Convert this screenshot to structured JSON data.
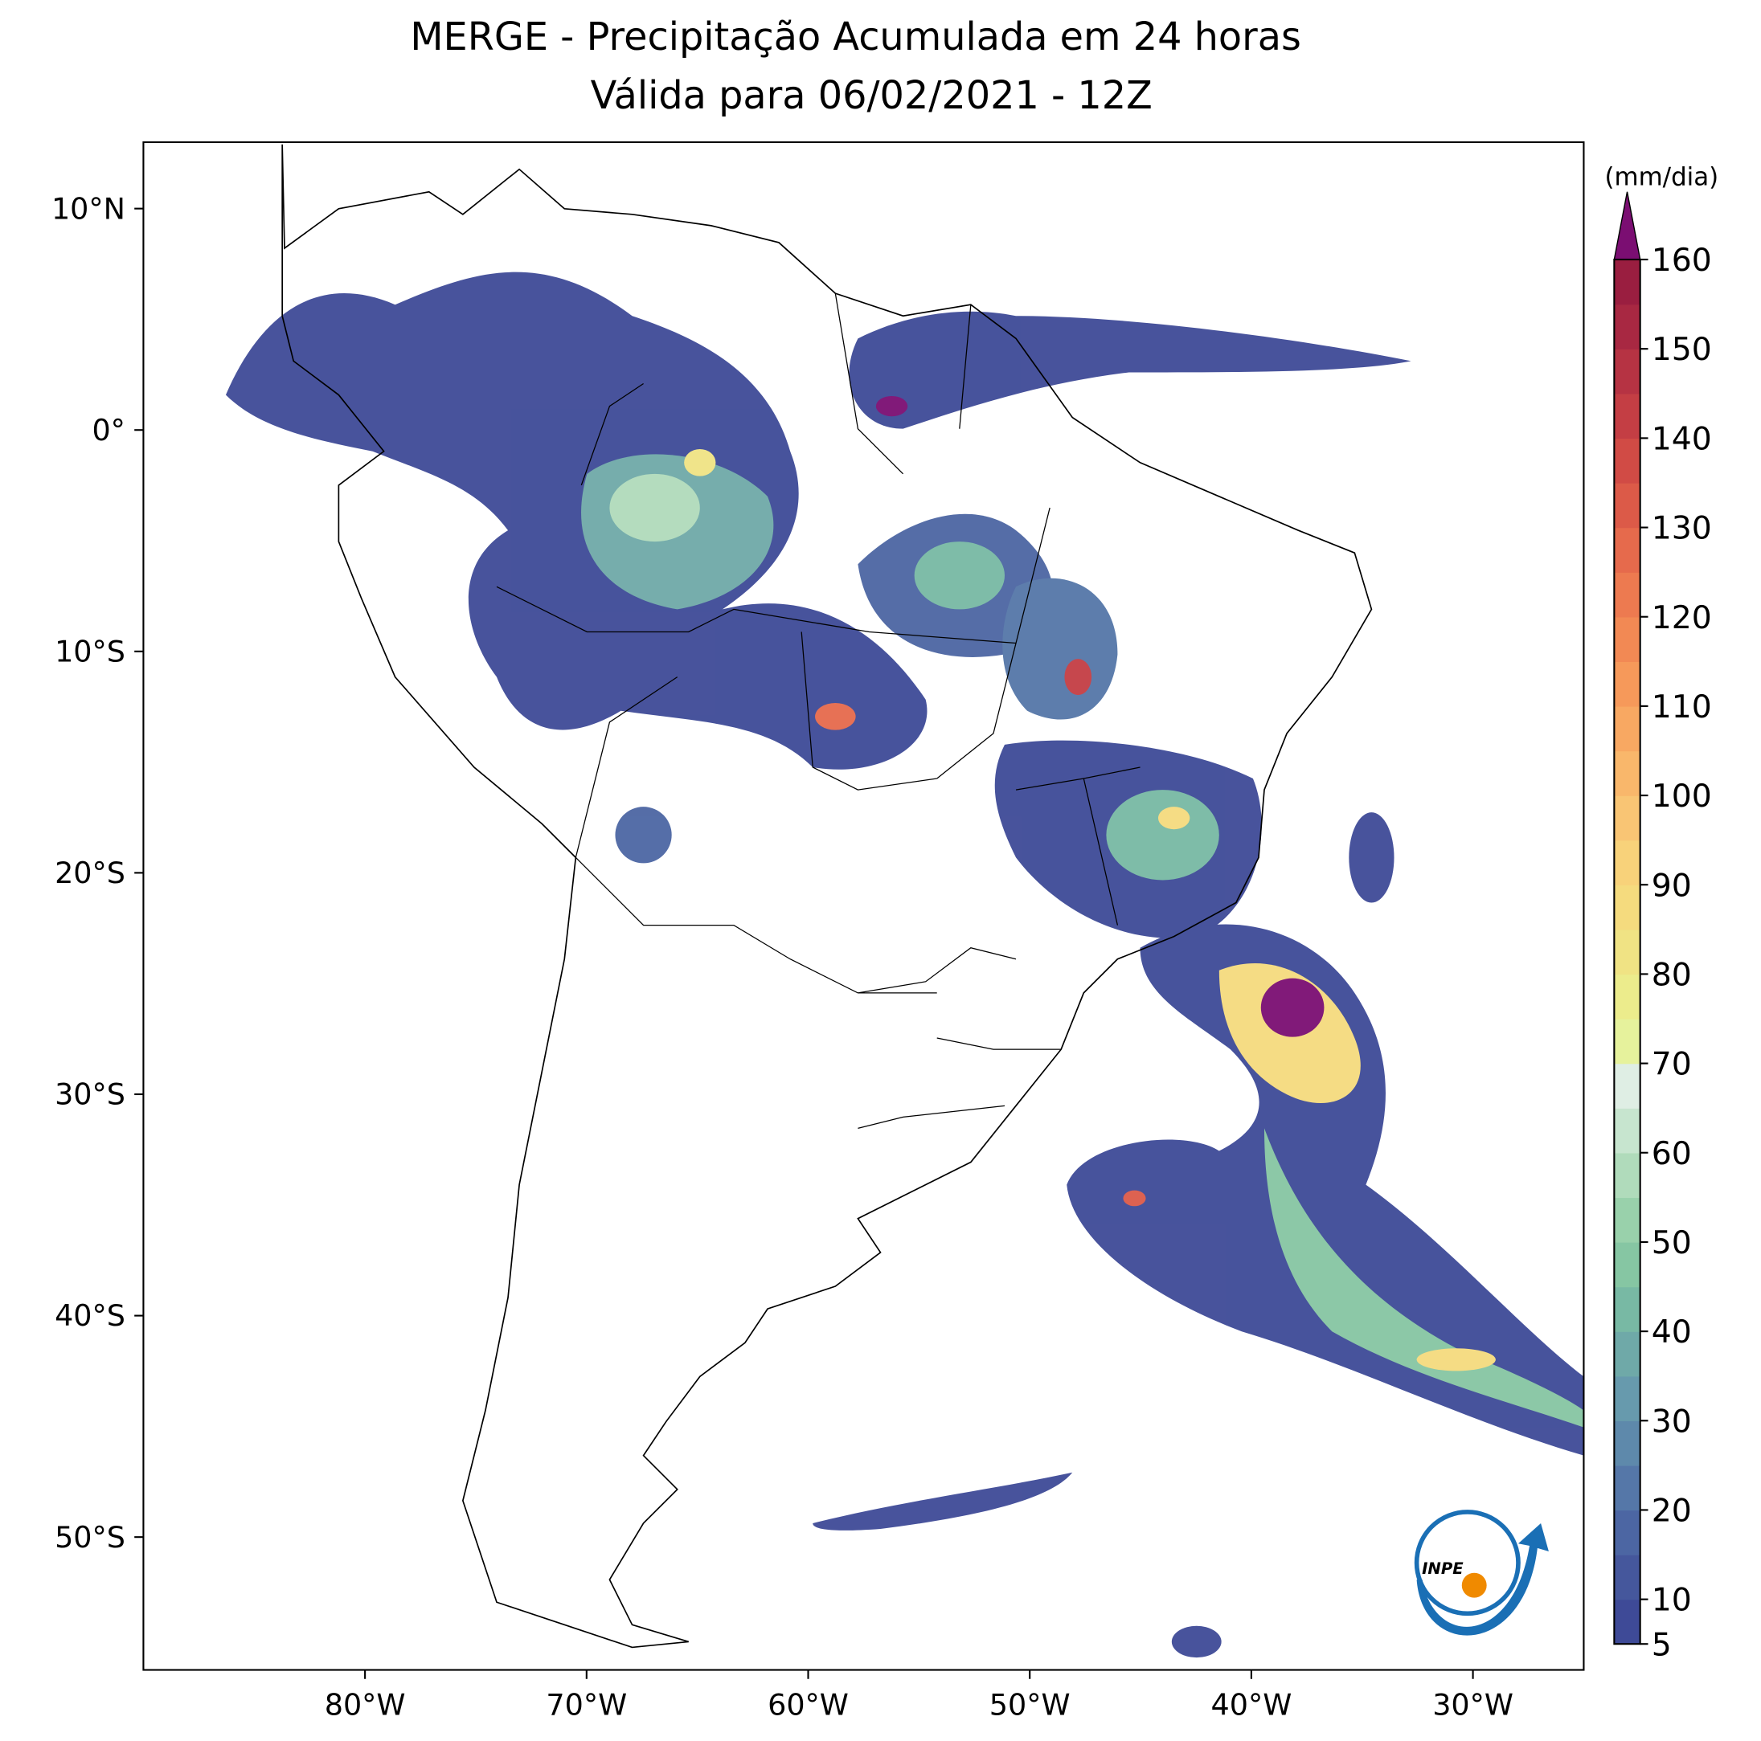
{
  "chart_data": {
    "type": "map",
    "title": "MERGE - Precipitação Acumulada em 24 horas",
    "subtitle": "Válida para 06/02/2021 - 12Z",
    "xlim": [
      -90,
      -25
    ],
    "ylim": [
      -56,
      13
    ],
    "xticks": [
      {
        "value": -80,
        "label": "80°W"
      },
      {
        "value": -70,
        "label": "70°W"
      },
      {
        "value": -60,
        "label": "60°W"
      },
      {
        "value": -50,
        "label": "50°W"
      },
      {
        "value": -40,
        "label": "40°W"
      },
      {
        "value": -30,
        "label": "30°W"
      }
    ],
    "yticks": [
      {
        "value": 10,
        "label": "10°N"
      },
      {
        "value": 0,
        "label": "0°"
      },
      {
        "value": -10,
        "label": "10°S"
      },
      {
        "value": -20,
        "label": "20°S"
      },
      {
        "value": -30,
        "label": "30°S"
      },
      {
        "value": -40,
        "label": "40°S"
      },
      {
        "value": -50,
        "label": "50°S"
      }
    ],
    "colorbar": {
      "label": "(mm/dia)",
      "lim": [
        5,
        160
      ],
      "extend_color": "#7b0e72",
      "ticks": [
        5,
        10,
        20,
        30,
        40,
        50,
        60,
        70,
        80,
        90,
        100,
        110,
        120,
        130,
        140,
        150,
        160
      ],
      "colors": [
        "#3e4a97",
        "#45579c",
        "#4c66a3",
        "#5577a8",
        "#5e89ab",
        "#679aad",
        "#6fa9a8",
        "#78b9a4",
        "#86c6a3",
        "#99d1ab",
        "#b0dbbb",
        "#c7e5cf",
        "#dfeee4",
        "#e6f29c",
        "#ecec8c",
        "#f0e384",
        "#f5db7e",
        "#f8d27a",
        "#f9c574",
        "#f9b76b",
        "#f8a862",
        "#f6995a",
        "#f28954",
        "#ed7a50",
        "#e66a4c",
        "#dc5a48",
        "#d14b45",
        "#c43e44",
        "#b63343",
        "#a82842",
        "#9a1e40"
      ]
    },
    "logo_text": "INPE"
  }
}
